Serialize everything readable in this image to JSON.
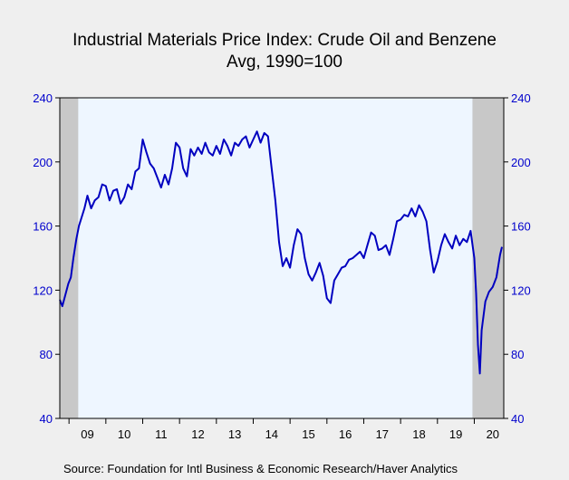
{
  "chart_data": {
    "type": "line",
    "title": "Industrial Materials Price Index: Crude Oil and Benzene",
    "subtitle": "Avg, 1990=100",
    "ylim": [
      40,
      240
    ],
    "yticks": [
      "40",
      "80",
      "120",
      "160",
      "200",
      "240"
    ],
    "yticks_right": [
      "40",
      "80",
      "120",
      "160",
      "200",
      "240"
    ],
    "xlim": [
      2008.75,
      2020.8
    ],
    "xticks": [
      {
        "label": "09",
        "x": 2009.5
      },
      {
        "label": "10",
        "x": 2010.5
      },
      {
        "label": "11",
        "x": 2011.5
      },
      {
        "label": "12",
        "x": 2012.5
      },
      {
        "label": "13",
        "x": 2013.5
      },
      {
        "label": "14",
        "x": 2014.5
      },
      {
        "label": "15",
        "x": 2015.5
      },
      {
        "label": "16",
        "x": 2016.5
      },
      {
        "label": "17",
        "x": 2017.5
      },
      {
        "label": "18",
        "x": 2018.5
      },
      {
        "label": "19",
        "x": 2019.5
      },
      {
        "label": "20",
        "x": 2020.5
      }
    ],
    "shaded_periods": [
      [
        2008.75,
        2009.25
      ],
      [
        2019.95,
        2020.8
      ]
    ],
    "grid": false,
    "series": [
      {
        "color": "#0000c0",
        "x": [
          2008.75,
          2008.82,
          2008.9,
          2008.98,
          2009.05,
          2009.12,
          2009.2,
          2009.27,
          2009.35,
          2009.42,
          2009.5,
          2009.6,
          2009.7,
          2009.8,
          2009.9,
          2010.0,
          2010.1,
          2010.2,
          2010.3,
          2010.4,
          2010.5,
          2010.6,
          2010.7,
          2010.8,
          2010.9,
          2011.0,
          2011.1,
          2011.2,
          2011.3,
          2011.4,
          2011.5,
          2011.6,
          2011.7,
          2011.8,
          2011.9,
          2012.0,
          2012.1,
          2012.2,
          2012.3,
          2012.4,
          2012.5,
          2012.6,
          2012.7,
          2012.8,
          2012.9,
          2013.0,
          2013.1,
          2013.2,
          2013.3,
          2013.4,
          2013.5,
          2013.6,
          2013.7,
          2013.8,
          2013.9,
          2014.0,
          2014.1,
          2014.2,
          2014.3,
          2014.4,
          2014.5,
          2014.6,
          2014.7,
          2014.8,
          2014.9,
          2015.0,
          2015.1,
          2015.2,
          2015.3,
          2015.4,
          2015.5,
          2015.6,
          2015.7,
          2015.8,
          2015.9,
          2016.0,
          2016.1,
          2016.2,
          2016.3,
          2016.4,
          2016.5,
          2016.6,
          2016.7,
          2016.8,
          2016.9,
          2017.0,
          2017.1,
          2017.2,
          2017.3,
          2017.4,
          2017.5,
          2017.6,
          2017.7,
          2017.8,
          2017.9,
          2018.0,
          2018.1,
          2018.2,
          2018.3,
          2018.4,
          2018.5,
          2018.6,
          2018.7,
          2018.8,
          2018.9,
          2019.0,
          2019.1,
          2019.2,
          2019.3,
          2019.4,
          2019.5,
          2019.6,
          2019.7,
          2019.8,
          2019.9,
          2020.0,
          2020.05,
          2020.1,
          2020.15,
          2020.2,
          2020.3,
          2020.4,
          2020.5,
          2020.6,
          2020.7,
          2020.75
        ],
        "values": [
          114,
          110,
          117,
          124,
          128,
          140,
          152,
          160,
          166,
          171,
          179,
          171,
          176,
          178,
          186,
          185,
          176,
          182,
          183,
          174,
          178,
          186,
          183,
          194,
          196,
          214,
          206,
          199,
          196,
          190,
          184,
          192,
          186,
          196,
          212,
          209,
          196,
          191,
          208,
          204,
          209,
          205,
          212,
          206,
          204,
          210,
          205,
          214,
          210,
          204,
          212,
          210,
          214,
          216,
          209,
          214,
          219,
          212,
          218,
          216,
          196,
          176,
          150,
          135,
          140,
          134,
          148,
          158,
          155,
          140,
          130,
          126,
          131,
          137,
          129,
          115,
          112,
          126,
          130,
          134,
          135,
          139,
          140,
          142,
          144,
          140,
          148,
          156,
          154,
          145,
          146,
          148,
          142,
          152,
          163,
          164,
          167,
          166,
          171,
          166,
          173,
          169,
          163,
          145,
          131,
          138,
          148,
          155,
          150,
          146,
          154,
          148,
          152,
          150,
          157,
          140,
          118,
          86,
          68,
          95,
          113,
          119,
          122,
          128,
          142,
          147
        ]
      }
    ]
  },
  "source": "Source:  Foundation for Intl Business & Economic Research/Haver Analytics"
}
